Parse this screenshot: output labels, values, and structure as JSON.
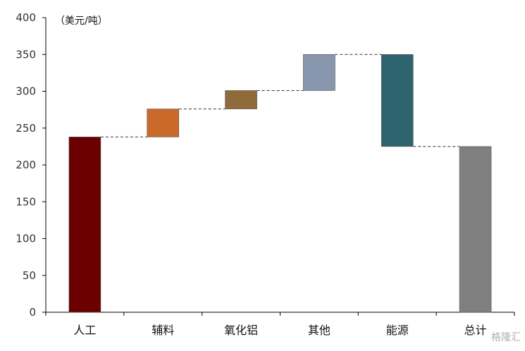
{
  "chart_data": {
    "type": "waterfall",
    "unit_label": "（美元/吨）",
    "categories": [
      "人工",
      "辅料",
      "氧化铝",
      "其他",
      "能源",
      "总计"
    ],
    "bars": [
      {
        "category": "人工",
        "start": 0,
        "end": 238,
        "color": "#6b0000"
      },
      {
        "category": "辅料",
        "start": 238,
        "end": 276,
        "color": "#c96a2a"
      },
      {
        "category": "氧化铝",
        "start": 276,
        "end": 301,
        "color": "#8f6a3a"
      },
      {
        "category": "其他",
        "start": 301,
        "end": 350,
        "color": "#8896ae"
      },
      {
        "category": "能源",
        "start": 350,
        "end": 225,
        "color": "#2e6470"
      },
      {
        "category": "总计",
        "start": 0,
        "end": 225,
        "color": "#808080"
      }
    ],
    "ylim": [
      0,
      400
    ],
    "yticks": [
      0,
      50,
      100,
      150,
      200,
      250,
      300,
      350,
      400
    ],
    "connectors": true,
    "grid": false
  },
  "watermark": "格隆汇"
}
